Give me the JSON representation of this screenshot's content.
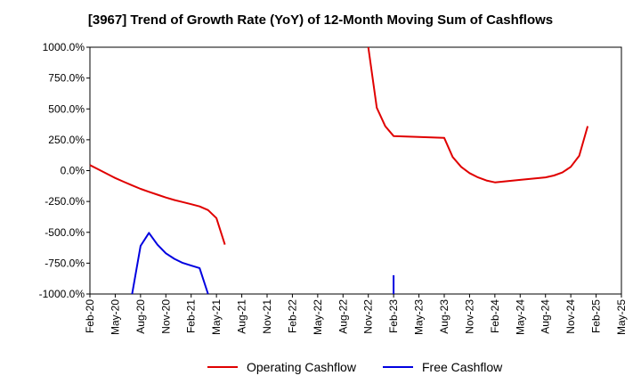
{
  "chart_data": {
    "type": "line",
    "title": "[3967]  Trend of Growth Rate (YoY) of 12-Month Moving Sum of Cashflows",
    "xlabel": "",
    "ylabel": "",
    "ylim": [
      -1000,
      1000
    ],
    "yticks": [
      1000,
      750,
      500,
      250,
      0,
      -250,
      -500,
      -750,
      -1000
    ],
    "ytick_labels": [
      "1000.0%",
      "750.0%",
      "500.0%",
      "250.0%",
      "0.0%",
      "-250.0%",
      "-500.0%",
      "-750.0%",
      "-1000.0%"
    ],
    "xlim": [
      "2020-02",
      "2025-05"
    ],
    "xtick_labels": [
      "Feb-20",
      "May-20",
      "Aug-20",
      "Nov-20",
      "Feb-21",
      "May-21",
      "Aug-21",
      "Nov-21",
      "Feb-22",
      "May-22",
      "Aug-22",
      "Nov-22",
      "Feb-23",
      "May-23",
      "Aug-23",
      "Nov-23",
      "Feb-24",
      "May-24",
      "Aug-24",
      "Nov-24",
      "Feb-25",
      "May-25"
    ],
    "grid": true,
    "legend_position": "bottom",
    "series": [
      {
        "name": "Operating Cashflow",
        "color": "#e00000",
        "points": [
          [
            "2020-02",
            45
          ],
          [
            "2020-03",
            10
          ],
          [
            "2020-04",
            -25
          ],
          [
            "2020-05",
            -60
          ],
          [
            "2020-06",
            -90
          ],
          [
            "2020-07",
            -120
          ],
          [
            "2020-08",
            -148
          ],
          [
            "2020-09",
            -172
          ],
          [
            "2020-10",
            -195
          ],
          [
            "2020-11",
            -218
          ],
          [
            "2020-12",
            -238
          ],
          [
            "2020-13",
            -255
          ],
          [
            "2021-02",
            -272
          ],
          [
            "2021-03",
            -290
          ],
          [
            "2021-04",
            -320
          ],
          [
            "2021-05",
            -385
          ],
          [
            "2021-06",
            -600
          ],
          [
            "2022-11",
            1000
          ],
          [
            "2022-12",
            510
          ],
          [
            "2023-01",
            360
          ],
          [
            "2023-02",
            280
          ],
          [
            "2023-05",
            272
          ],
          [
            "2023-08",
            265
          ],
          [
            "2023-09",
            110
          ],
          [
            "2023-10",
            30
          ],
          [
            "2023-11",
            -20
          ],
          [
            "2023-12",
            -55
          ],
          [
            "2024-01",
            -80
          ],
          [
            "2024-02",
            -95
          ],
          [
            "2024-05",
            -75
          ],
          [
            "2024-08",
            -55
          ],
          [
            "2024-09",
            -40
          ],
          [
            "2024-10",
            -15
          ],
          [
            "2024-11",
            30
          ],
          [
            "2024-12",
            120
          ],
          [
            "2025-01",
            360
          ]
        ]
      },
      {
        "name": "Free Cashflow",
        "color": "#0000e0",
        "segments": [
          [
            [
              "2020-07",
              -1000
            ],
            [
              "2020-08",
              -610
            ],
            [
              "2020-09",
              -505
            ],
            [
              "2020-10",
              -600
            ],
            [
              "2020-11",
              -670
            ],
            [
              "2020-12",
              -715
            ],
            [
              "2021-01",
              -748
            ],
            [
              "2021-02",
              -770
            ],
            [
              "2021-03",
              -790
            ],
            [
              "2021-04",
              -1000
            ]
          ],
          [
            [
              "2023-02",
              -1000
            ],
            [
              "2023-02",
              -848
            ]
          ]
        ]
      }
    ]
  }
}
